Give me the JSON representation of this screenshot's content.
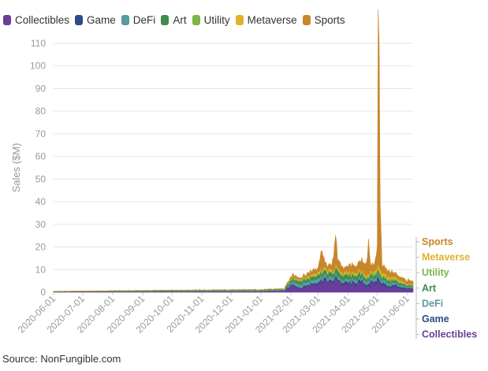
{
  "chart_data": {
    "type": "area",
    "stacked": true,
    "title": "",
    "xlabel": "",
    "ylabel": "Sales ($M)",
    "ylim": [
      0,
      110
    ],
    "yticks": [
      0,
      10,
      20,
      30,
      40,
      50,
      60,
      70,
      80,
      90,
      100,
      110
    ],
    "xlim": [
      "2020-06-01",
      "2021-06-07"
    ],
    "xticks": [
      "2020-06-01",
      "2020-07-01",
      "2020-08-01",
      "2020-09-01",
      "2020-10-01",
      "2020-11-01",
      "2020-12-01",
      "2021-01-01",
      "2021-02-01",
      "2021-03-01",
      "2021-04-01",
      "2021-05-01",
      "2021-06-01"
    ],
    "legend_position": "top-left",
    "grid": "horizontal",
    "series": [
      {
        "name": "Collectibles",
        "color": "#6a3d9a",
        "points": [
          [
            "2020-06-01",
            0.2
          ],
          [
            "2020-10-01",
            0.3
          ],
          [
            "2021-01-01",
            0.4
          ],
          [
            "2021-01-25",
            0.6
          ],
          [
            "2021-02-03",
            3.5
          ],
          [
            "2021-02-10",
            1.5
          ],
          [
            "2021-02-20",
            3
          ],
          [
            "2021-03-01",
            4
          ],
          [
            "2021-03-07",
            5.5
          ],
          [
            "2021-03-14",
            4
          ],
          [
            "2021-03-21",
            6
          ],
          [
            "2021-03-25",
            3.5
          ],
          [
            "2021-04-05",
            3.5
          ],
          [
            "2021-04-15",
            4
          ],
          [
            "2021-04-20",
            2.5
          ],
          [
            "2021-04-24",
            3.5
          ],
          [
            "2021-04-30",
            4
          ],
          [
            "2021-05-03",
            6
          ],
          [
            "2021-05-05",
            3.5
          ],
          [
            "2021-05-12",
            2
          ],
          [
            "2021-05-20",
            2.5
          ],
          [
            "2021-05-28",
            1.5
          ],
          [
            "2021-06-07",
            1.2
          ]
        ]
      },
      {
        "name": "Game",
        "color": "#2e4a87",
        "points": [
          [
            "2020-06-01",
            0.02
          ],
          [
            "2021-01-25",
            0.1
          ],
          [
            "2021-02-03",
            0.5
          ],
          [
            "2021-03-07",
            0.8
          ],
          [
            "2021-04-01",
            0.8
          ],
          [
            "2021-05-03",
            1.2
          ],
          [
            "2021-06-07",
            0.3
          ]
        ]
      },
      {
        "name": "DeFi",
        "color": "#5b9a9f",
        "points": [
          [
            "2020-06-01",
            0.05
          ],
          [
            "2020-10-01",
            0.2
          ],
          [
            "2021-01-25",
            0.3
          ],
          [
            "2021-02-03",
            1.5
          ],
          [
            "2021-03-07",
            1.8
          ],
          [
            "2021-03-20",
            1.5
          ],
          [
            "2021-04-10",
            1.2
          ],
          [
            "2021-05-03",
            1.5
          ],
          [
            "2021-06-07",
            0.5
          ]
        ]
      },
      {
        "name": "Art",
        "color": "#3e8b4c",
        "points": [
          [
            "2020-06-01",
            0.05
          ],
          [
            "2020-10-01",
            0.2
          ],
          [
            "2021-01-01",
            0.2
          ],
          [
            "2021-01-25",
            0.3
          ],
          [
            "2021-02-03",
            1
          ],
          [
            "2021-03-07",
            1.5
          ],
          [
            "2021-03-20",
            1.8
          ],
          [
            "2021-04-10",
            1.5
          ],
          [
            "2021-05-03",
            1.2
          ],
          [
            "2021-06-07",
            0.5
          ]
        ]
      },
      {
        "name": "Utility",
        "color": "#7ab648",
        "points": [
          [
            "2020-06-01",
            0.05
          ],
          [
            "2021-01-25",
            0.1
          ],
          [
            "2021-02-03",
            0.4
          ],
          [
            "2021-03-07",
            0.6
          ],
          [
            "2021-04-10",
            0.5
          ],
          [
            "2021-05-03",
            1.0
          ],
          [
            "2021-06-07",
            0.3
          ]
        ]
      },
      {
        "name": "Metaverse",
        "color": "#e1b12c",
        "points": [
          [
            "2020-06-01",
            0.02
          ],
          [
            "2021-01-25",
            0.05
          ],
          [
            "2021-02-03",
            0.3
          ],
          [
            "2021-03-07",
            1.0
          ],
          [
            "2021-03-21",
            0.8
          ],
          [
            "2021-04-25",
            0.8
          ],
          [
            "2021-05-03",
            1.5
          ],
          [
            "2021-06-07",
            0.2
          ]
        ]
      },
      {
        "name": "Sports",
        "color": "#c8862a",
        "points": [
          [
            "2020-06-01",
            0.01
          ],
          [
            "2021-01-25",
            0.1
          ],
          [
            "2021-02-03",
            1.2
          ],
          [
            "2021-02-10",
            0.5
          ],
          [
            "2021-03-01",
            2
          ],
          [
            "2021-03-05",
            8
          ],
          [
            "2021-03-08",
            2
          ],
          [
            "2021-03-15",
            2
          ],
          [
            "2021-03-19",
            13
          ],
          [
            "2021-03-21",
            4
          ],
          [
            "2021-03-28",
            2
          ],
          [
            "2021-04-05",
            3
          ],
          [
            "2021-04-10",
            3
          ],
          [
            "2021-04-20",
            6
          ],
          [
            "2021-04-22",
            13
          ],
          [
            "2021-04-24",
            3
          ],
          [
            "2021-04-28",
            3
          ],
          [
            "2021-05-01",
            8
          ],
          [
            "2021-05-02",
            92
          ],
          [
            "2021-05-03",
            83
          ],
          [
            "2021-05-04",
            30
          ],
          [
            "2021-05-06",
            3
          ],
          [
            "2021-05-15",
            2
          ],
          [
            "2021-05-25",
            1.5
          ],
          [
            "2021-06-07",
            1.5
          ]
        ]
      }
    ],
    "end_labels": [
      "Sports",
      "Metaverse",
      "Utility",
      "Art",
      "DeFi",
      "Game",
      "Collectibles"
    ]
  },
  "source": "Source: NonFungible.com"
}
